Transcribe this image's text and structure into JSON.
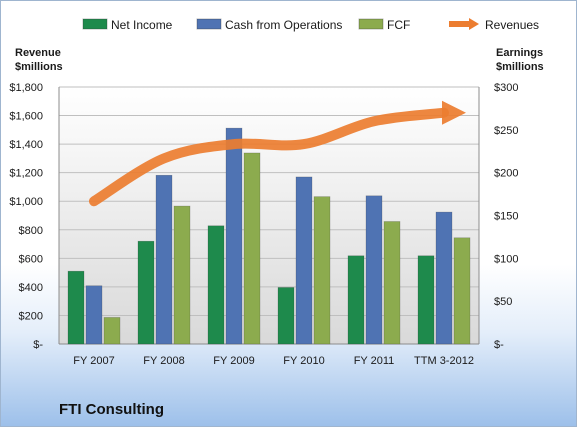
{
  "chart_data": {
    "type": "bar",
    "title": "FTI Consulting",
    "categories": [
      "FY 2007",
      "FY 2008",
      "FY 2009",
      "FY 2010",
      "FY 2011",
      "TTM 3-2012"
    ],
    "series": [
      {
        "name": "Net Income",
        "axis": "right",
        "color": "#1e8a4c",
        "values": [
          85,
          120,
          138,
          66,
          103,
          103
        ]
      },
      {
        "name": "Cash from Operations",
        "axis": "right",
        "color": "#4f73b3",
        "values": [
          68,
          197,
          252,
          195,
          173,
          154
        ]
      },
      {
        "name": "FCF",
        "axis": "right",
        "color": "#8cab4e",
        "values": [
          31,
          161,
          223,
          172,
          143,
          124
        ]
      },
      {
        "name": "Revenues",
        "axis": "left",
        "type": "line",
        "color": "#ec7d30",
        "values": [
          1000,
          1300,
          1400,
          1400,
          1560,
          1620
        ]
      }
    ],
    "left_axis": {
      "label_line1": "Revenue",
      "label_line2": "$millions",
      "ylim": [
        0,
        1800
      ],
      "ticks": [
        "$-",
        "$200",
        "$400",
        "$600",
        "$800",
        "$1,000",
        "$1,200",
        "$1,400",
        "$1,600",
        "$1,800"
      ]
    },
    "right_axis": {
      "label_line1": "Earnings",
      "label_line2": "$millions",
      "ylim": [
        0,
        300
      ],
      "ticks": [
        "$-",
        "$50",
        "$100",
        "$150",
        "$200",
        "$250",
        "$300"
      ]
    },
    "grid": true,
    "legend_position": "top"
  }
}
